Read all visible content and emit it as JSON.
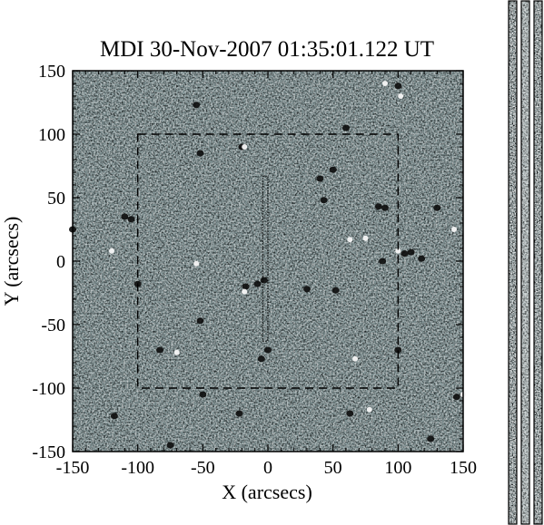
{
  "chart_data": {
    "type": "heatmap",
    "title": "MDI 30-Nov-2007 01:35:01.122 UT",
    "xlabel": "X (arcsecs)",
    "ylabel": "Y (arcsecs)",
    "xlim": [
      -150,
      150
    ],
    "ylim": [
      -150,
      150
    ],
    "x_ticks": [
      -150,
      -100,
      -50,
      0,
      50,
      100,
      150
    ],
    "y_ticks": [
      -150,
      -100,
      -50,
      0,
      50,
      100,
      150
    ],
    "x_tick_labels": [
      "-150",
      "-100",
      "-50",
      "0",
      "50",
      "100",
      "150"
    ],
    "y_tick_labels": [
      "-150",
      "-100",
      "-50",
      "0",
      "50",
      "100",
      "150"
    ],
    "colormap": "grayscale magnetogram",
    "background_color": "#7f9294",
    "regions": [
      {
        "name": "dashed-box",
        "style": "dashed",
        "x": [
          -100,
          100
        ],
        "y": [
          -100,
          100
        ]
      },
      {
        "name": "slit",
        "style": "dotted",
        "x": [
          -4,
          0
        ],
        "y": [
          -63,
          67
        ]
      }
    ],
    "features": [
      {
        "x": -3,
        "y": -15,
        "polarity": "negative"
      },
      {
        "x": -8,
        "y": -18,
        "polarity": "negative"
      },
      {
        "x": 60,
        "y": 105,
        "polarity": "negative"
      },
      {
        "x": 85,
        "y": 43,
        "polarity": "negative"
      },
      {
        "x": 90,
        "y": 42,
        "polarity": "negative"
      },
      {
        "x": 110,
        "y": 7,
        "polarity": "negative"
      },
      {
        "x": 105,
        "y": 6,
        "polarity": "negative"
      },
      {
        "x": 88,
        "y": 0,
        "polarity": "negative"
      },
      {
        "x": 43,
        "y": 48,
        "polarity": "negative"
      },
      {
        "x": 40,
        "y": 65,
        "polarity": "negative"
      },
      {
        "x": 50,
        "y": 72,
        "polarity": "negative"
      },
      {
        "x": -105,
        "y": 33,
        "polarity": "negative"
      },
      {
        "x": -110,
        "y": 35,
        "polarity": "negative"
      },
      {
        "x": -52,
        "y": -47,
        "polarity": "negative"
      },
      {
        "x": -83,
        "y": -70,
        "polarity": "negative"
      },
      {
        "x": -52,
        "y": 85,
        "polarity": "negative"
      },
      {
        "x": -100,
        "y": -18,
        "polarity": "negative"
      },
      {
        "x": 0,
        "y": -70,
        "polarity": "negative"
      },
      {
        "x": -5,
        "y": -77,
        "polarity": "negative"
      },
      {
        "x": -118,
        "y": -122,
        "polarity": "negative"
      },
      {
        "x": -75,
        "y": -145,
        "polarity": "negative"
      },
      {
        "x": -50,
        "y": -105,
        "polarity": "negative"
      },
      {
        "x": 118,
        "y": 2,
        "polarity": "negative"
      },
      {
        "x": 125,
        "y": -140,
        "polarity": "negative"
      },
      {
        "x": -150,
        "y": 25,
        "polarity": "negative"
      },
      {
        "x": 52,
        "y": -23,
        "polarity": "negative"
      },
      {
        "x": 30,
        "y": -22,
        "polarity": "negative"
      },
      {
        "x": 130,
        "y": 42,
        "polarity": "negative"
      },
      {
        "x": -55,
        "y": 123,
        "polarity": "negative"
      },
      {
        "x": -20,
        "y": 90,
        "polarity": "negative"
      },
      {
        "x": 100,
        "y": -70,
        "polarity": "negative"
      },
      {
        "x": 145,
        "y": -107,
        "polarity": "negative"
      },
      {
        "x": -17,
        "y": -20,
        "polarity": "negative"
      },
      {
        "x": 63,
        "y": -120,
        "polarity": "negative"
      },
      {
        "x": -22,
        "y": -120,
        "polarity": "negative"
      },
      {
        "x": 100,
        "y": 138,
        "polarity": "negative"
      },
      {
        "x": 90,
        "y": 140,
        "polarity": "positive"
      },
      {
        "x": -120,
        "y": 8,
        "polarity": "positive"
      },
      {
        "x": -18,
        "y": -24,
        "polarity": "positive"
      },
      {
        "x": -70,
        "y": -72,
        "polarity": "positive"
      },
      {
        "x": 63,
        "y": 17,
        "polarity": "positive"
      },
      {
        "x": 100,
        "y": 8,
        "polarity": "positive"
      },
      {
        "x": 102,
        "y": 130,
        "polarity": "positive"
      },
      {
        "x": 143,
        "y": 25,
        "polarity": "positive"
      },
      {
        "x": 67,
        "y": -77,
        "polarity": "positive"
      },
      {
        "x": -55,
        "y": -2,
        "polarity": "positive"
      },
      {
        "x": -18,
        "y": 90,
        "polarity": "positive"
      },
      {
        "x": 75,
        "y": 18,
        "polarity": "positive"
      },
      {
        "x": 78,
        "y": -117,
        "polarity": "positive"
      },
      {
        "x": 150,
        "y": -105,
        "polarity": "positive"
      }
    ],
    "side_panels": 3
  }
}
